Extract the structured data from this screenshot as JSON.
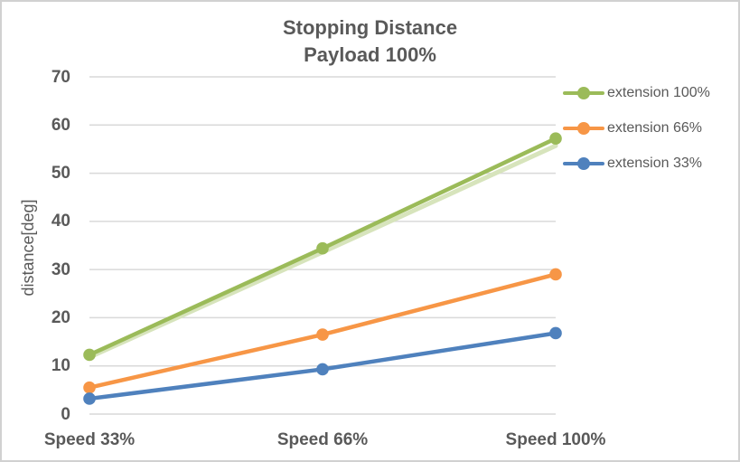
{
  "frame": {
    "background": "#FFFFFF",
    "border_color": "#D1D1D1"
  },
  "chart_data": {
    "type": "line",
    "title": "Stopping Distance",
    "subtitle": "Payload 100%",
    "categories": [
      "Speed 33%",
      "Speed 66%",
      "Speed 100%"
    ],
    "series": [
      {
        "name": "extension 100%",
        "color": "#9BBB59",
        "values": [
          12.3,
          34.4,
          57.2
        ]
      },
      {
        "name": "extension 66%",
        "color": "#F79646",
        "values": [
          5.5,
          16.5,
          29.0
        ]
      },
      {
        "name": "extension 33%",
        "color": "#4F81BD",
        "values": [
          3.2,
          9.3,
          16.8
        ]
      }
    ],
    "ghost_series": {
      "description": "unlabeled pale-green companion line running just below the extension 100% series",
      "color": "#D7E4BC",
      "values": [
        11.8,
        33.6,
        55.7
      ]
    },
    "xlabel": "",
    "ylabel": "distance[deg]",
    "ylim": [
      0,
      70
    ],
    "yticks": [
      0,
      10,
      20,
      30,
      40,
      50,
      60,
      70
    ],
    "grid": true,
    "gridline_color": "#D9D9D9",
    "text_color": "#595959",
    "legend_position": "right",
    "marker": "circle"
  }
}
